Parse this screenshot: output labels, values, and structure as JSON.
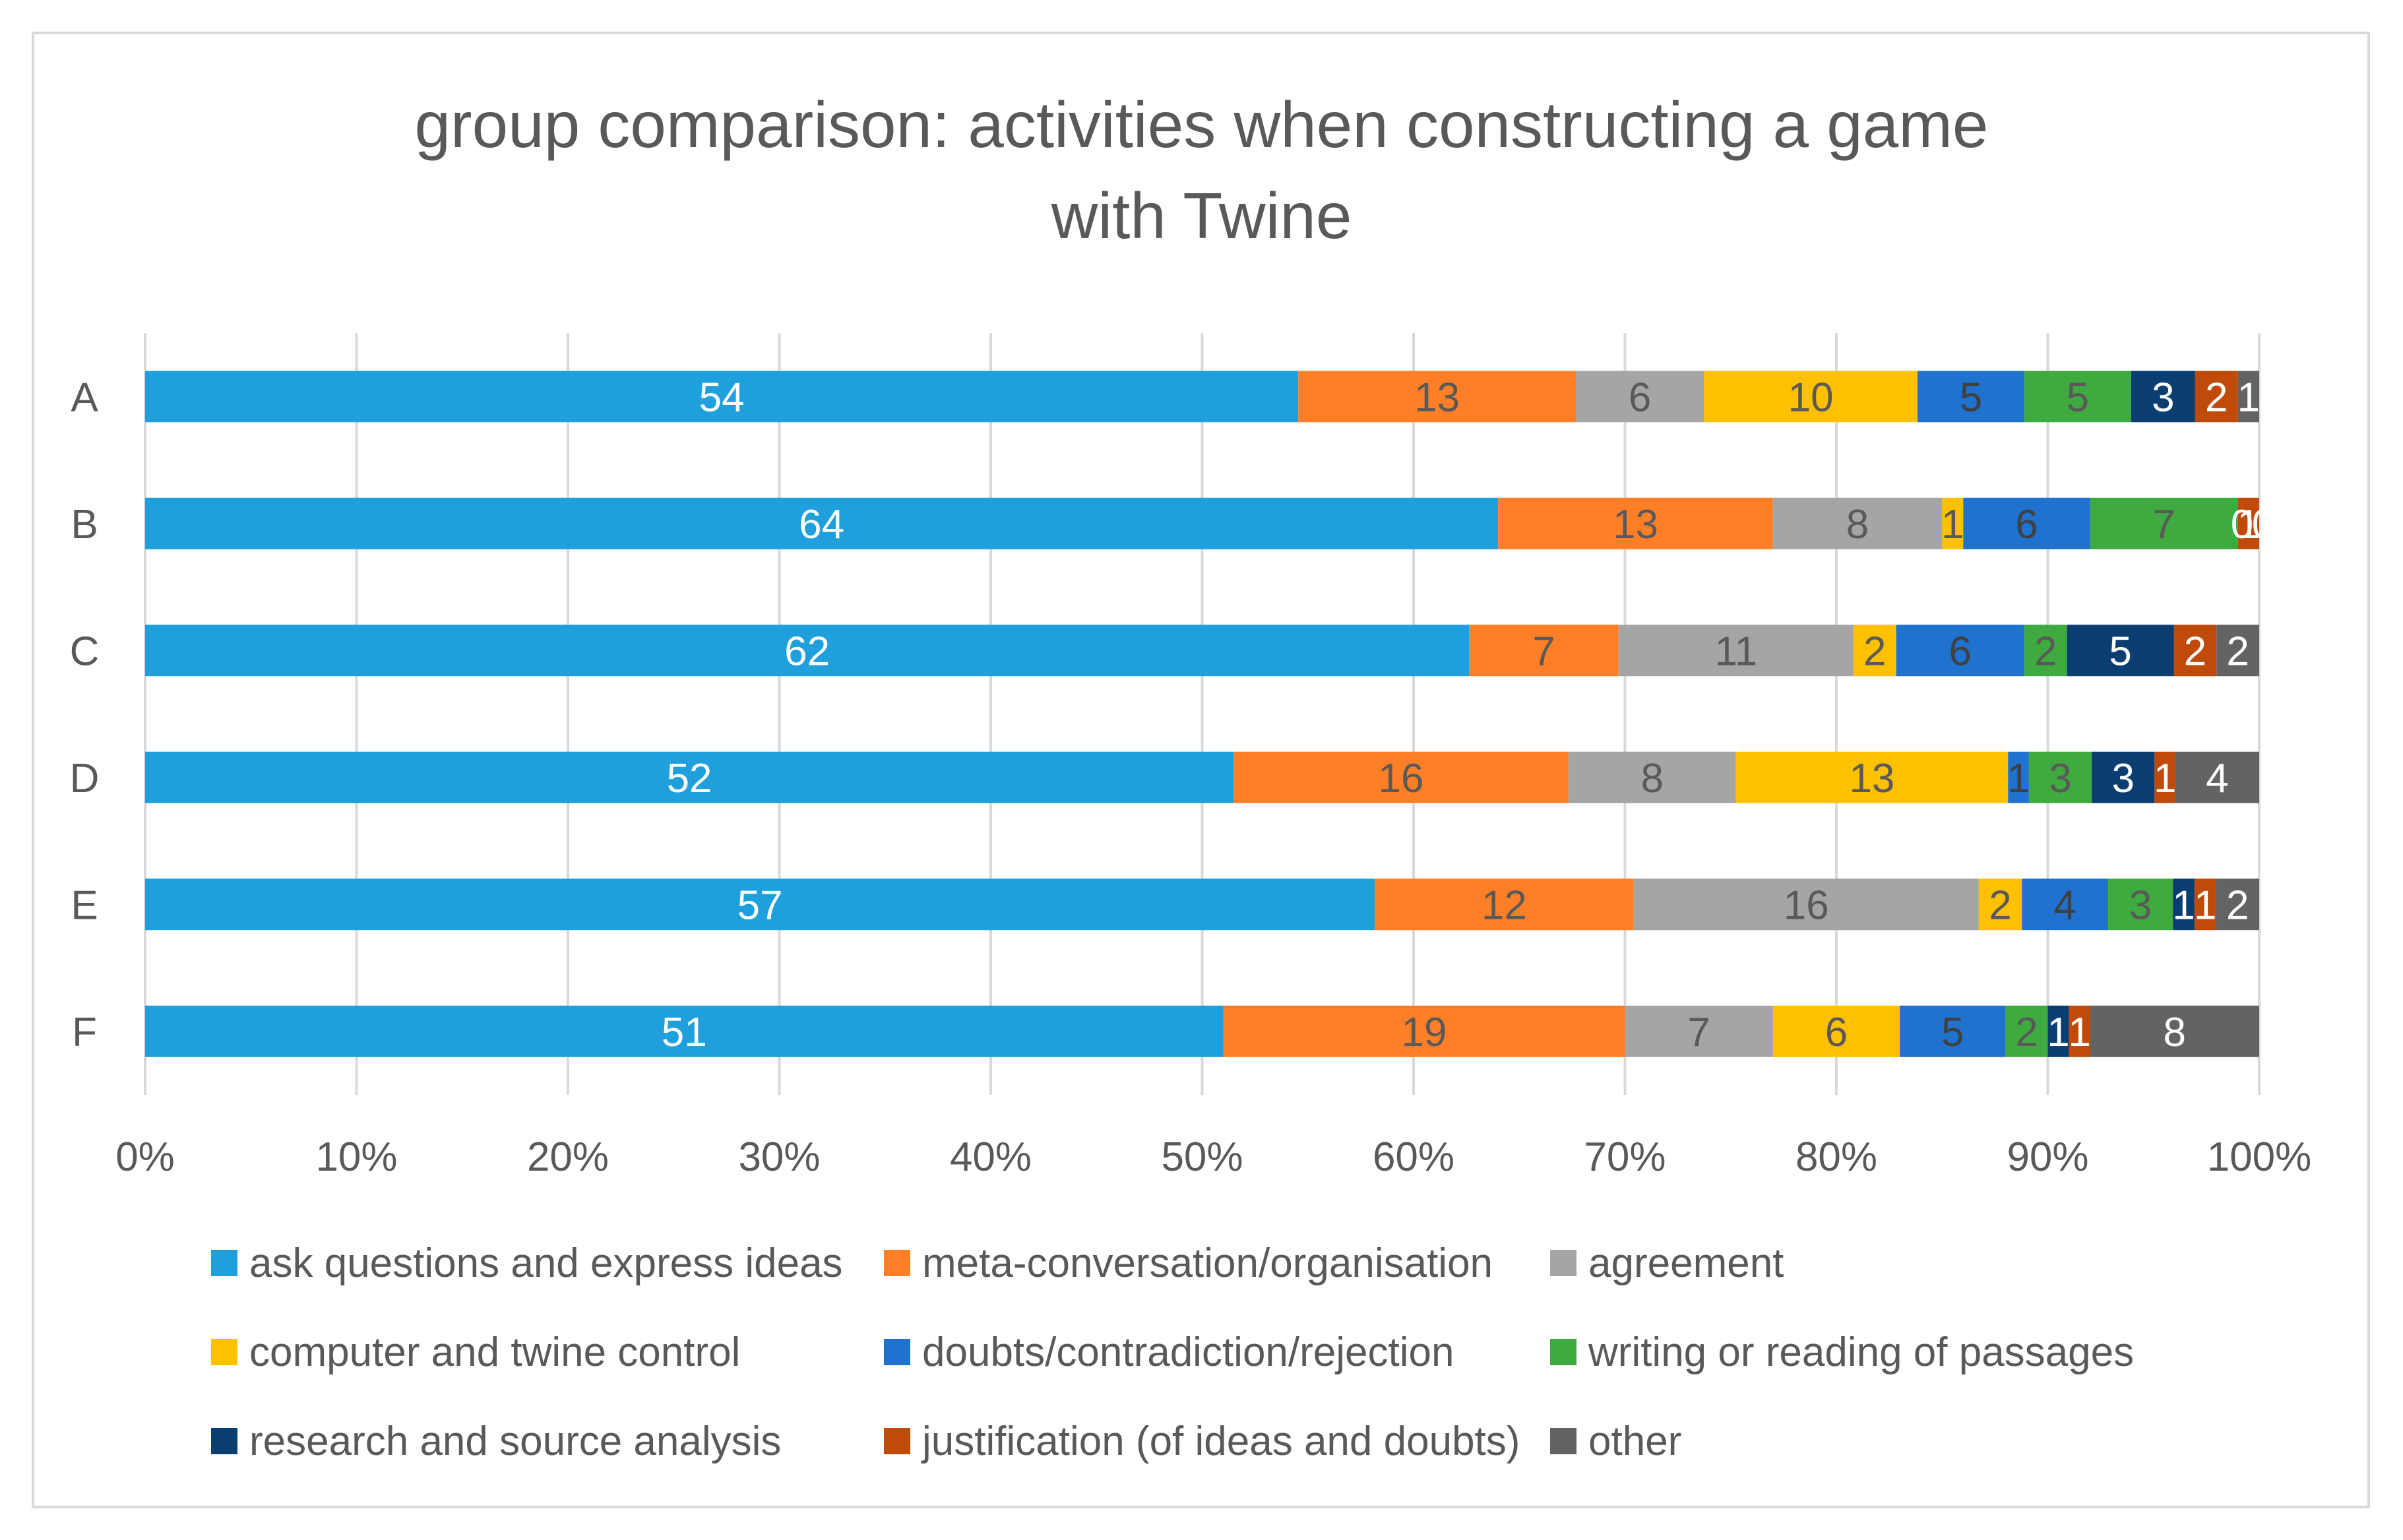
{
  "chart_data": {
    "type": "bar",
    "orientation": "horizontal",
    "stacked": "percent",
    "title": "group comparison: activities when constructing a game with Twine",
    "title_lines": [
      "group comparison: activities when constructing a game",
      "with Twine"
    ],
    "categories": [
      "A",
      "B",
      "C",
      "D",
      "E",
      "F"
    ],
    "x_ticks": [
      "0%",
      "10%",
      "20%",
      "30%",
      "40%",
      "50%",
      "60%",
      "70%",
      "80%",
      "90%",
      "100%"
    ],
    "xlim": [
      0,
      100
    ],
    "grid": true,
    "legend_position": "bottom",
    "series": [
      {
        "name": "ask questions and express ideas",
        "color": "#1f9fdc",
        "label_color": "#ffffff",
        "values": [
          54,
          64,
          62,
          52,
          57,
          51
        ]
      },
      {
        "name": "meta-conversation/organisation",
        "color": "#ff7f27",
        "label_color": "#595959",
        "values": [
          13,
          13,
          7,
          16,
          12,
          19
        ]
      },
      {
        "name": "agreement",
        "color": "#a5a5a5",
        "label_color": "#595959",
        "values": [
          6,
          8,
          11,
          8,
          16,
          7
        ]
      },
      {
        "name": "computer and twine control",
        "color": "#ffc000",
        "label_color": "#595959",
        "values": [
          10,
          1,
          2,
          13,
          2,
          6
        ]
      },
      {
        "name": "doubts/contradiction/rejection",
        "color": "#1f72cd",
        "label_color": "#404040",
        "values": [
          5,
          6,
          6,
          1,
          4,
          5
        ]
      },
      {
        "name": "writing or reading of passages",
        "color": "#3faa3f",
        "label_color": "#595959",
        "values": [
          5,
          7,
          2,
          3,
          3,
          2
        ]
      },
      {
        "name": "research and source analysis",
        "color": "#0a3d70",
        "label_color": "#ffffff",
        "values": [
          3,
          0,
          5,
          3,
          1,
          1
        ]
      },
      {
        "name": "justification (of ideas and doubts)",
        "color": "#bf4a0a",
        "label_color": "#ffffff",
        "values": [
          2,
          1,
          2,
          1,
          1,
          1
        ]
      },
      {
        "name": "other",
        "color": "#636363",
        "label_color": "#ffffff",
        "values": [
          1,
          0,
          2,
          4,
          2,
          8
        ]
      }
    ]
  }
}
